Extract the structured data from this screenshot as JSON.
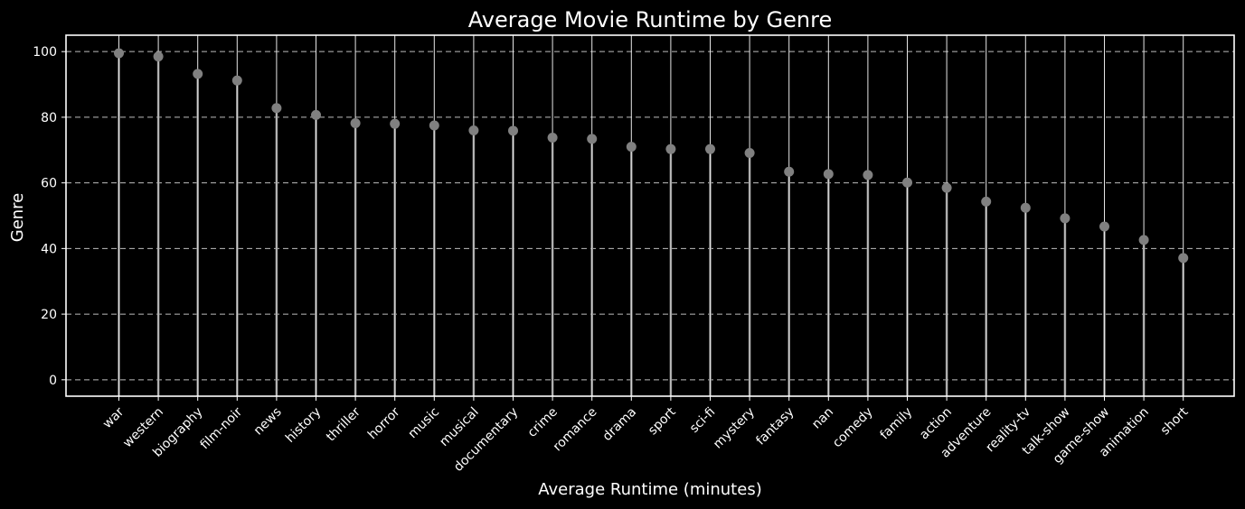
{
  "chart_data": {
    "type": "lollipop",
    "title": "Average Movie Runtime by Genre",
    "xlabel": "Average Runtime (minutes)",
    "ylabel": "Genre",
    "ylim": [
      -5,
      105
    ],
    "yticks": [
      0,
      20,
      40,
      60,
      80,
      100
    ],
    "grid": "horizontal dashed",
    "categories": [
      "war",
      "western",
      "biography",
      "film-noir",
      "news",
      "history",
      "thriller",
      "horror",
      "music",
      "musical",
      "documentary",
      "crime",
      "romance",
      "drama",
      "sport",
      "sci-fi",
      "mystery",
      "fantasy",
      "nan",
      "comedy",
      "family",
      "action",
      "adventure",
      "reality-tv",
      "talk-show",
      "game-show",
      "animation",
      "short"
    ],
    "values": [
      99.5,
      98.5,
      93.2,
      91.2,
      82.8,
      80.7,
      78.2,
      78.0,
      77.5,
      76.0,
      75.9,
      73.8,
      73.4,
      71.0,
      70.3,
      70.3,
      69.1,
      63.4,
      62.7,
      62.4,
      60.1,
      58.5,
      54.3,
      52.4,
      49.2,
      46.7,
      42.6,
      37.1
    ]
  },
  "colors": {
    "background": "#000000",
    "text": "#ffffff",
    "frame": "#ffffff",
    "grid": "#bdbdbd",
    "stem": "#7a7a7a",
    "marker": "#808080"
  }
}
